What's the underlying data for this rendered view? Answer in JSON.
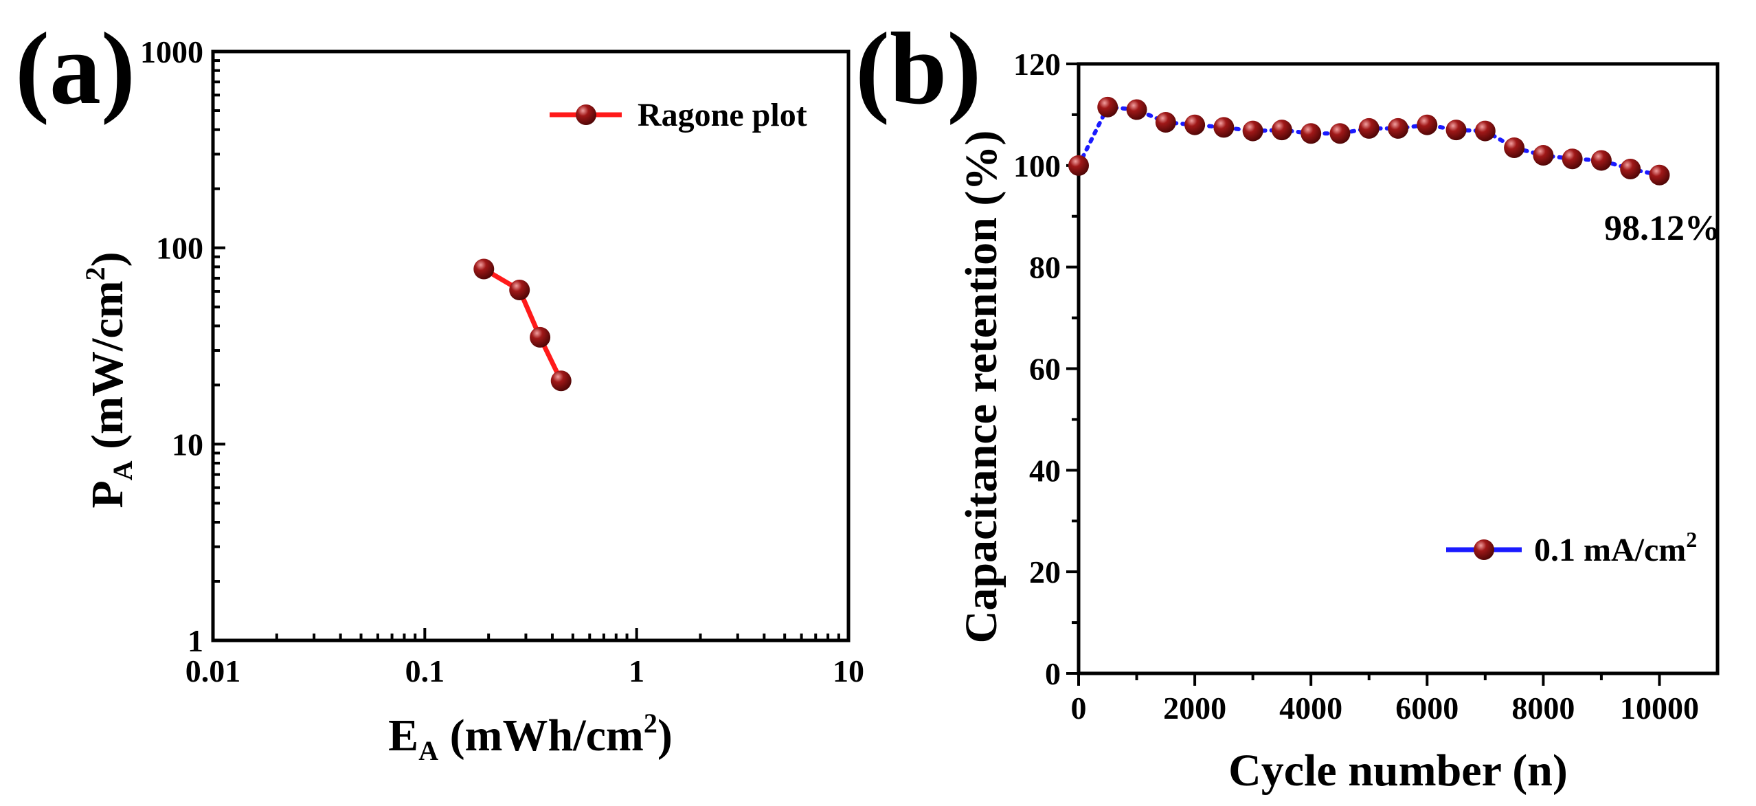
{
  "chart_data": [
    {
      "type": "line",
      "panel_label": "(a)",
      "xscale": "log",
      "yscale": "log",
      "xlim": [
        0.01,
        10
      ],
      "ylim": [
        1,
        1000
      ],
      "xticks": [
        0.01,
        0.1,
        1,
        10
      ],
      "yticks": [
        1,
        10,
        100,
        1000
      ],
      "xtick_labels": [
        "0.01",
        "0.1",
        "1",
        "10"
      ],
      "ytick_labels": [
        "1",
        "10",
        "100",
        "1000"
      ],
      "xlabel_main": "E",
      "xlabel_sub": "A",
      "xlabel_unit_pre": " (mWh/cm",
      "xlabel_unit_sup": "2",
      "xlabel_unit_post": ")",
      "ylabel_main": "P",
      "ylabel_sub": "A",
      "ylabel_unit_pre": " (mW/cm",
      "ylabel_unit_sup": "2",
      "ylabel_unit_post": ")",
      "legend_position": "top-right",
      "series": [
        {
          "name": "Ragone plot",
          "line_color": "#ff1a1a",
          "marker_color": "#8b1010",
          "line_style": "solid",
          "x": [
            0.19,
            0.28,
            0.35,
            0.44
          ],
          "y": [
            78,
            61,
            35,
            21
          ]
        }
      ]
    },
    {
      "type": "line",
      "panel_label": "(b)",
      "xlim": [
        0,
        11000
      ],
      "ylim": [
        0,
        120
      ],
      "xticks": [
        0,
        2000,
        4000,
        6000,
        8000,
        10000
      ],
      "yticks": [
        0,
        20,
        40,
        60,
        80,
        100,
        120
      ],
      "xtick_labels": [
        "0",
        "2000",
        "4000",
        "6000",
        "8000",
        "10000"
      ],
      "ytick_labels": [
        "0",
        "20",
        "40",
        "60",
        "80",
        "100",
        "120"
      ],
      "xlabel": "Cycle number (n)",
      "ylabel": "Capacitance retention (%)",
      "legend_position": "bottom-right",
      "annotation": "98.12%",
      "series": [
        {
          "name_pre": "0.1 mA/cm",
          "name_sup": "2",
          "line_color": "#1a1aff",
          "marker_color": "#8b1010",
          "line_style": "dotted",
          "x": [
            0,
            500,
            1000,
            1500,
            2000,
            2500,
            3000,
            3500,
            4000,
            4500,
            5000,
            5500,
            6000,
            6500,
            7000,
            7500,
            8000,
            8500,
            9000,
            9500,
            10000
          ],
          "y": [
            100,
            111.5,
            111,
            108.5,
            108,
            107.5,
            106.8,
            107,
            106.3,
            106.3,
            107.3,
            107.3,
            108,
            107,
            106.8,
            103.5,
            102,
            101.3,
            101,
            99.3,
            98.12
          ]
        }
      ]
    }
  ]
}
